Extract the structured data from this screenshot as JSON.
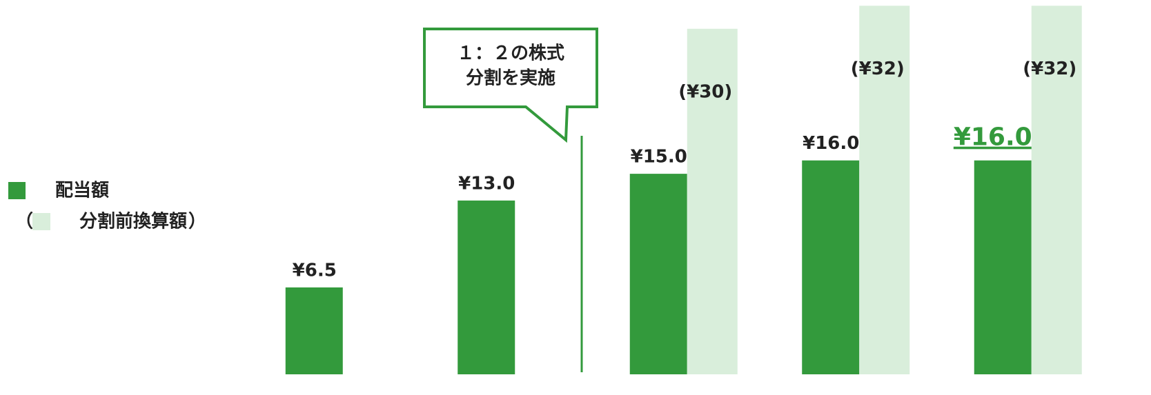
{
  "chart_data": {
    "type": "bar",
    "categories": [
      null,
      null,
      null,
      null,
      null
    ],
    "series": [
      {
        "name": "配当額",
        "color": "#339a3c",
        "values": [
          6.5,
          13.0,
          15.0,
          16.0,
          16.0
        ],
        "value_labels": [
          "¥6.5",
          "¥13.0",
          "¥15.0",
          "¥16.0",
          "¥16.0"
        ]
      },
      {
        "name": "分割前換算額",
        "color": "#d9eedb",
        "axis": "y2",
        "values": [
          null,
          null,
          30,
          32,
          32
        ],
        "value_labels": [
          null,
          null,
          "(¥30)",
          "(¥32)",
          "(¥32)"
        ]
      }
    ],
    "legend_open": "（",
    "legend_close": "）",
    "ylim": [
      0,
      28
    ],
    "y2lim": [
      0,
      32.5
    ],
    "highlight_index": 4,
    "annotation": [
      "１：２の株式",
      "分割を実施"
    ]
  }
}
